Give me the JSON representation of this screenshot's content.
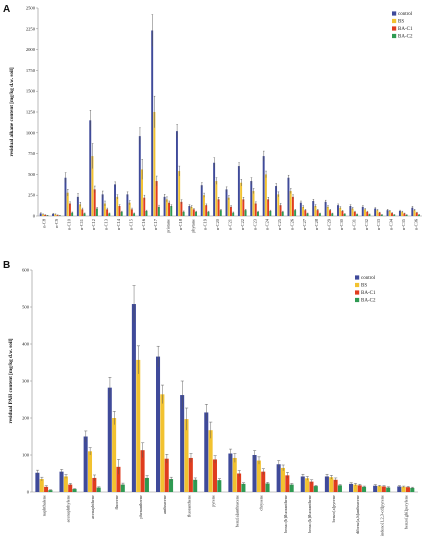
{
  "colors": {
    "control": "#3f4a9a",
    "BS": "#f2c230",
    "BA-C1": "#e03c1e",
    "BA-C2": "#2e9a52",
    "axis": "#8a8a8a",
    "error": "#555555"
  },
  "chart_data": [
    {
      "panel": "A",
      "type": "bar",
      "ylabel": "residual alkane content [mg/kg d.w. soil]",
      "ylim": [
        0,
        2500
      ],
      "yticks": [
        0,
        250,
        500,
        750,
        1000,
        1250,
        1500,
        1750,
        2000,
        2250,
        2500
      ],
      "grid": false,
      "legend": "top-right",
      "categories": [
        "n-C8",
        "n-C9",
        "n-C10",
        "n-C11",
        "n-C12",
        "n-C13",
        "n-C14",
        "n-C15",
        "n-C16",
        "n-C17",
        "pristane",
        "n-C18",
        "phytane",
        "n-C19",
        "n-C20",
        "n-C21",
        "n-C22",
        "n-C23",
        "n-C24",
        "n-C25",
        "n-C26",
        "n-C27",
        "n-C28",
        "n-C29",
        "n-C30",
        "n-C31",
        "n-C32",
        "n-C33",
        "n-C34",
        "n-C35",
        "n-C36"
      ],
      "series": [
        {
          "name": "control",
          "values": [
            30,
            25,
            460,
            230,
            1150,
            260,
            380,
            260,
            960,
            2230,
            230,
            1020,
            120,
            370,
            640,
            320,
            600,
            420,
            720,
            360,
            460,
            160,
            180,
            170,
            130,
            120,
            110,
            90,
            70,
            60,
            100
          ],
          "errors": [
            8,
            6,
            60,
            40,
            120,
            40,
            30,
            30,
            100,
            190,
            30,
            80,
            15,
            30,
            60,
            30,
            40,
            40,
            60,
            30,
            30,
            20,
            20,
            20,
            15,
            15,
            15,
            10,
            10,
            10,
            15
          ]
        },
        {
          "name": "BS",
          "values": [
            20,
            20,
            280,
            140,
            720,
            150,
            230,
            160,
            560,
            1250,
            200,
            540,
            110,
            250,
            420,
            220,
            400,
            300,
            500,
            260,
            300,
            110,
            120,
            110,
            100,
            90,
            80,
            70,
            60,
            50,
            70
          ],
          "errors": [
            5,
            5,
            40,
            25,
            150,
            30,
            25,
            25,
            120,
            190,
            30,
            60,
            15,
            25,
            40,
            25,
            40,
            30,
            40,
            30,
            30,
            15,
            15,
            15,
            12,
            12,
            10,
            8,
            8,
            8,
            10
          ]
        },
        {
          "name": "BA-C1",
          "values": [
            12,
            10,
            150,
            80,
            320,
            80,
            120,
            80,
            220,
            420,
            160,
            170,
            80,
            130,
            200,
            110,
            200,
            150,
            200,
            130,
            230,
            70,
            70,
            70,
            60,
            50,
            50,
            40,
            35,
            30,
            40
          ],
          "errors": [
            4,
            3,
            20,
            15,
            40,
            15,
            15,
            15,
            30,
            60,
            20,
            25,
            10,
            15,
            25,
            15,
            25,
            20,
            25,
            20,
            25,
            10,
            10,
            10,
            8,
            8,
            8,
            6,
            6,
            5,
            6
          ]
        },
        {
          "name": "BA-C2",
          "values": [
            6,
            5,
            40,
            30,
            90,
            30,
            50,
            30,
            60,
            110,
            120,
            50,
            50,
            50,
            70,
            40,
            70,
            50,
            60,
            50,
            70,
            30,
            30,
            30,
            25,
            20,
            20,
            15,
            15,
            12,
            15
          ],
          "errors": [
            2,
            2,
            8,
            6,
            15,
            6,
            8,
            6,
            10,
            20,
            15,
            10,
            8,
            8,
            10,
            8,
            10,
            8,
            10,
            8,
            10,
            5,
            5,
            5,
            4,
            4,
            4,
            3,
            3,
            3,
            3
          ]
        }
      ]
    },
    {
      "panel": "B",
      "type": "bar",
      "ylabel": "residual PAH content [mg/kg d.w. soil]",
      "ylim": [
        0,
        600
      ],
      "yticks": [
        0,
        100,
        200,
        300,
        400,
        500,
        600
      ],
      "grid": false,
      "legend": "top-right",
      "categories": [
        "naphthalene",
        "acenaphthylene",
        "acenaphthene",
        "fluorene",
        "phenanthrene",
        "anthracene",
        "fluoranthene",
        "pyrene",
        "benz[a]anthracene",
        "chrysene",
        "benzo[b]fluoranthene",
        "benzo[k]fluoranthene",
        "benzo[a]pyrene",
        "dibenz[a,h]anthracene",
        "indeno[1,2,3-cd]pyrene",
        "benzo[ghi]perylene"
      ],
      "series": [
        {
          "name": "control",
          "values": [
            52,
            55,
            150,
            282,
            508,
            366,
            262,
            215,
            104,
            100,
            75,
            42,
            42,
            22,
            17,
            15
          ],
          "errors": [
            7,
            6,
            15,
            28,
            50,
            28,
            38,
            22,
            12,
            12,
            10,
            6,
            6,
            3,
            3,
            2
          ]
        },
        {
          "name": "BS",
          "values": [
            35,
            42,
            110,
            200,
            357,
            264,
            197,
            167,
            92,
            85,
            65,
            37,
            40,
            20,
            16,
            14
          ],
          "errors": [
            5,
            5,
            10,
            18,
            38,
            25,
            30,
            22,
            12,
            10,
            8,
            5,
            5,
            3,
            2,
            2
          ]
        },
        {
          "name": "BA-C1",
          "values": [
            14,
            20,
            38,
            68,
            113,
            90,
            92,
            88,
            50,
            55,
            45,
            28,
            33,
            18,
            15,
            13
          ],
          "errors": [
            3,
            3,
            8,
            20,
            20,
            12,
            12,
            10,
            8,
            8,
            8,
            5,
            5,
            3,
            2,
            2
          ]
        },
        {
          "name": "BA-C2",
          "values": [
            5,
            8,
            12,
            20,
            38,
            35,
            33,
            32,
            22,
            23,
            20,
            16,
            18,
            14,
            12,
            11
          ],
          "errors": [
            1,
            1,
            2,
            4,
            6,
            5,
            5,
            4,
            3,
            3,
            3,
            2,
            2,
            2,
            2,
            2
          ]
        }
      ]
    }
  ]
}
